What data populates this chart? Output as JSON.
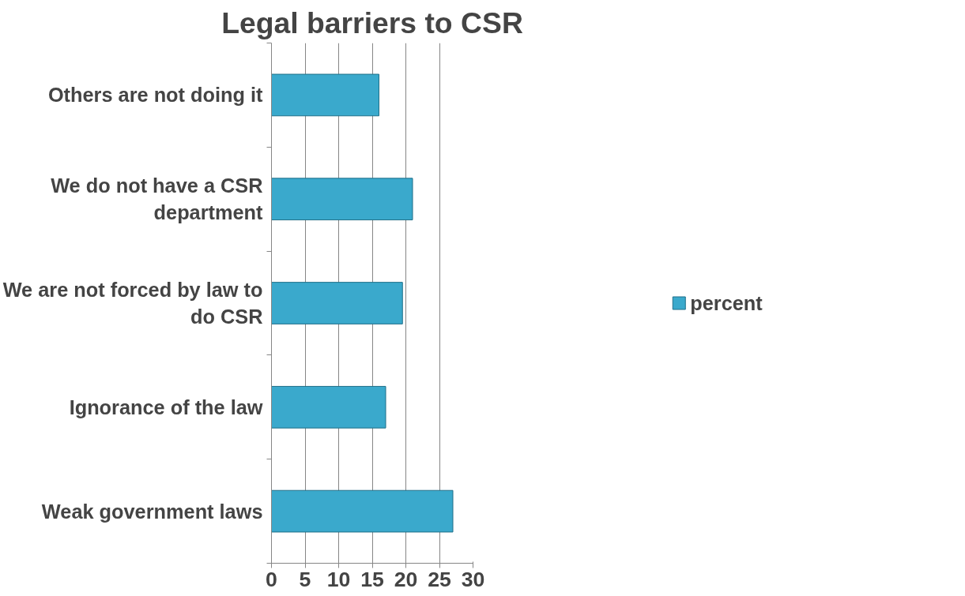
{
  "chart_data": {
    "type": "bar",
    "orientation": "horizontal",
    "title": "Legal barriers to CSR",
    "categories": [
      "Others are not doing it",
      "We do not have a CSR department",
      "We are not forced by law to do CSR",
      "Ignorance of the law",
      "Weak government laws"
    ],
    "series": [
      {
        "name": "percent",
        "color": "#3aa9cc",
        "values": [
          16,
          21,
          19.5,
          17,
          27
        ]
      }
    ],
    "xlim": [
      0,
      30
    ],
    "xticks": [
      0,
      5,
      10,
      15,
      20,
      25,
      30
    ],
    "grid": "x",
    "legend": "right"
  }
}
